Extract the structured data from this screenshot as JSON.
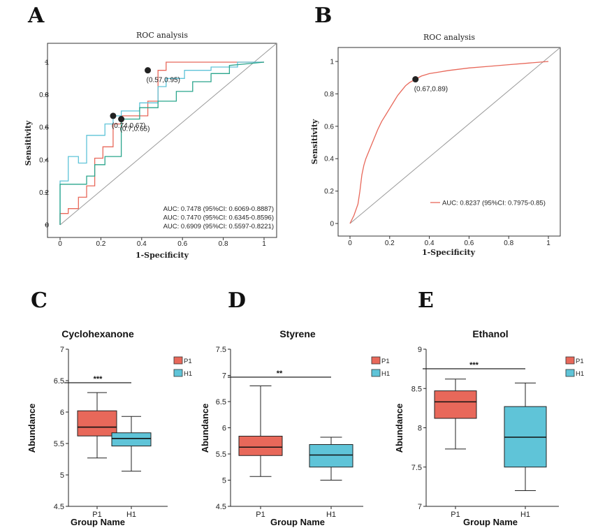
{
  "colors": {
    "red": "#e8685a",
    "cyan": "#5fc4d8",
    "teal": "#2aa58c",
    "gray": "#999999",
    "dark": "#222222"
  },
  "chart_data": [
    {
      "panel": "A",
      "type": "line",
      "title": "ROC analysis",
      "xlabel": "1-Specificity",
      "ylabel": "Sensitivity",
      "xlim": [
        0,
        1
      ],
      "ylim": [
        0,
        1
      ],
      "xticks": [
        "0",
        "0.2",
        "0.4",
        "0.6",
        "0.8",
        "1"
      ],
      "yticks": [
        "0",
        "0.2",
        "0.4",
        "0.6",
        "0.8",
        "1"
      ],
      "series": [
        {
          "name": "AUC: 0.7478 (95%CI: 0.6069-0.8887)",
          "color": "red",
          "x": [
            0,
            0,
            0.04,
            0.04,
            0.09,
            0.09,
            0.13,
            0.13,
            0.17,
            0.17,
            0.21,
            0.21,
            0.26,
            0.26,
            0.3,
            0.3,
            0.43,
            0.43,
            0.48,
            0.48,
            0.52,
            0.52,
            0.65,
            0.65,
            0.7,
            0.7,
            0.78,
            0.78,
            0.91,
            1
          ],
          "y": [
            0,
            0.07,
            0.07,
            0.1,
            0.1,
            0.17,
            0.17,
            0.24,
            0.24,
            0.41,
            0.41,
            0.48,
            0.48,
            0.62,
            0.62,
            0.67,
            0.67,
            0.76,
            0.76,
            0.95,
            0.95,
            1,
            1,
            1,
            1,
            1,
            1,
            1,
            1,
            1
          ]
        },
        {
          "name": "AUC: 0.7470 (95%CI: 0.6345-0.8596)",
          "color": "cyan",
          "x": [
            0,
            0,
            0.04,
            0.04,
            0.09,
            0.09,
            0.13,
            0.13,
            0.22,
            0.22,
            0.26,
            0.26,
            0.3,
            0.3,
            0.39,
            0.39,
            0.48,
            0.48,
            0.52,
            0.52,
            0.61,
            0.61,
            0.74,
            0.74,
            0.87,
            0.87,
            1
          ],
          "y": [
            0,
            0.27,
            0.27,
            0.42,
            0.42,
            0.38,
            0.38,
            0.55,
            0.55,
            0.62,
            0.62,
            0.67,
            0.67,
            0.7,
            0.7,
            0.75,
            0.75,
            0.85,
            0.85,
            0.9,
            0.9,
            0.95,
            0.95,
            0.97,
            0.97,
            1,
            1
          ]
        },
        {
          "name": "AUC: 0.6909 (95%CI: 0.5597-0.8221)",
          "color": "teal",
          "x": [
            0,
            0,
            0.13,
            0.13,
            0.17,
            0.17,
            0.22,
            0.22,
            0.3,
            0.3,
            0.39,
            0.39,
            0.48,
            0.48,
            0.57,
            0.57,
            0.65,
            0.65,
            0.74,
            0.74,
            0.83,
            0.83,
            1
          ],
          "y": [
            0,
            0.25,
            0.25,
            0.3,
            0.3,
            0.37,
            0.37,
            0.42,
            0.42,
            0.65,
            0.65,
            0.72,
            0.72,
            0.76,
            0.76,
            0.82,
            0.82,
            0.88,
            0.88,
            0.93,
            0.93,
            0.98,
            1
          ]
        }
      ],
      "cutpoints": [
        {
          "x": 0.43,
          "y": 0.95,
          "label": "(0.57,0.95)"
        },
        {
          "x": 0.26,
          "y": 0.67,
          "label": "(0.74,0.67)"
        },
        {
          "x": 0.3,
          "y": 0.65,
          "label": "(0.7,0.65)"
        }
      ]
    },
    {
      "panel": "B",
      "type": "line",
      "title": "ROC analysis",
      "xlabel": "1-Specificity",
      "ylabel": "Sensitivity",
      "xlim": [
        0,
        1
      ],
      "ylim": [
        0,
        1
      ],
      "xticks": [
        "0",
        "0.2",
        "0.4",
        "0.6",
        "0.8",
        "1"
      ],
      "yticks": [
        "0",
        "0.2",
        "0.4",
        "0.6",
        "0.8",
        "1"
      ],
      "series": [
        {
          "name": "AUC: 0.8237 (95%CI: 0.7975-0.85)",
          "color": "red",
          "x": [
            0,
            0.02,
            0.04,
            0.05,
            0.06,
            0.07,
            0.08,
            0.1,
            0.12,
            0.14,
            0.16,
            0.18,
            0.2,
            0.22,
            0.24,
            0.26,
            0.28,
            0.3,
            0.33,
            0.36,
            0.4,
            0.45,
            0.5,
            0.6,
            0.7,
            0.8,
            0.9,
            1
          ],
          "y": [
            0,
            0.05,
            0.12,
            0.2,
            0.3,
            0.36,
            0.4,
            0.46,
            0.52,
            0.58,
            0.63,
            0.67,
            0.71,
            0.75,
            0.79,
            0.82,
            0.85,
            0.87,
            0.89,
            0.91,
            0.925,
            0.935,
            0.945,
            0.96,
            0.97,
            0.98,
            0.99,
            1
          ]
        }
      ],
      "cutpoints": [
        {
          "x": 0.33,
          "y": 0.89,
          "label": "(0.67,0.89)"
        }
      ]
    },
    {
      "panel": "C",
      "type": "box",
      "title": "Cyclohexanone",
      "xlabel": "Group Name",
      "ylabel": "Abundance",
      "ylim": [
        4.5,
        7
      ],
      "yticks": [
        "4.5",
        "5",
        "5.5",
        "6",
        "6.5",
        "7"
      ],
      "categories": [
        "P1",
        "H1"
      ],
      "boxes": [
        {
          "name": "P1",
          "color": "red",
          "min": 5.27,
          "q1": 5.62,
          "median": 5.76,
          "q3": 6.02,
          "max": 6.31
        },
        {
          "name": "H1",
          "color": "cyan",
          "min": 5.06,
          "q1": 5.46,
          "median": 5.58,
          "q3": 5.67,
          "max": 5.93
        }
      ],
      "significance": "***",
      "legend": [
        "P1",
        "H1"
      ]
    },
    {
      "panel": "D",
      "type": "box",
      "title": "Styrene",
      "xlabel": "Group Name",
      "ylabel": "Abundance",
      "ylim": [
        4.5,
        7.5
      ],
      "yticks": [
        "4.5",
        "5",
        "5.5",
        "6",
        "6.5",
        "7",
        "7.5"
      ],
      "categories": [
        "P1",
        "H1"
      ],
      "boxes": [
        {
          "name": "P1",
          "color": "red",
          "min": 5.07,
          "q1": 5.47,
          "median": 5.63,
          "q3": 5.84,
          "max": 6.8
        },
        {
          "name": "H1",
          "color": "cyan",
          "min": 5.0,
          "q1": 5.25,
          "median": 5.48,
          "q3": 5.68,
          "max": 5.82
        }
      ],
      "significance": "**",
      "legend": [
        "P1",
        "H1"
      ]
    },
    {
      "panel": "E",
      "type": "box",
      "title": "Ethanol",
      "xlabel": "Group Name",
      "ylabel": "Abundance",
      "ylim": [
        7,
        9
      ],
      "yticks": [
        "7",
        "7.5",
        "8",
        "8.5",
        "9"
      ],
      "categories": [
        "P1",
        "H1"
      ],
      "boxes": [
        {
          "name": "P1",
          "color": "red",
          "min": 7.73,
          "q1": 8.12,
          "median": 8.33,
          "q3": 8.47,
          "max": 8.62
        },
        {
          "name": "H1",
          "color": "cyan",
          "min": 7.2,
          "q1": 7.5,
          "median": 7.88,
          "q3": 8.27,
          "max": 8.57
        }
      ],
      "significance": "***",
      "legend": [
        "P1",
        "H1"
      ]
    }
  ]
}
